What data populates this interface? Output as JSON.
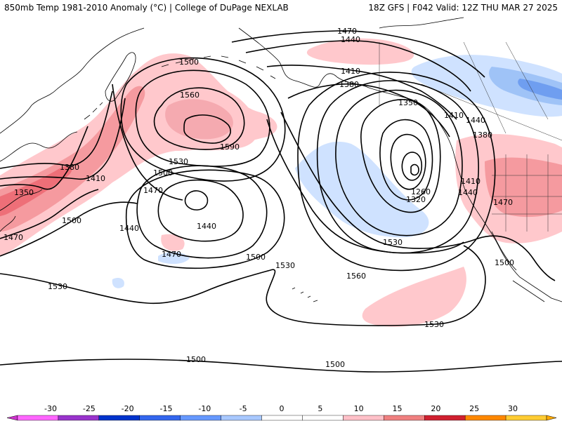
{
  "header": {
    "title": "850mb Temp 1981-2010 Anomaly (°C) | College of DuPage NEXLAB",
    "run_info": "18Z GFS | F042 Valid: 12Z THU MAR 27 2025"
  },
  "contour_labels": [
    "1470",
    "1440",
    "1410",
    "1380",
    "1350",
    "1260",
    "1320",
    "1500",
    "1560",
    "1590",
    "1530",
    "1410",
    "1380",
    "1350",
    "1500",
    "1470",
    "1440",
    "1440",
    "1470",
    "1500",
    "1530",
    "1560",
    "1530",
    "1410",
    "1440",
    "1470",
    "1500",
    "1500",
    "1500",
    "1530",
    "1470",
    "1410",
    "1440",
    "1380"
  ],
  "colorbar": {
    "ticks": [
      "-30",
      "-25",
      "-20",
      "-15",
      "-10",
      "-5",
      "0",
      "5",
      "10",
      "15",
      "20",
      "25",
      "30"
    ],
    "colors": [
      "#ff66ff",
      "#9933cc",
      "#0033cc",
      "#3366ee",
      "#6699ff",
      "#a8c8ff",
      "#ffffff",
      "#ffffff",
      "#ffc0c8",
      "#f08080",
      "#d02030",
      "#ff8800",
      "#ffcc33"
    ],
    "low_end_color": "#cc33cc",
    "high_end_color": "#ffaa00"
  },
  "anomaly_colors": {
    "warm_light": "#ffc8cc",
    "warm_mid": "#f59a9f",
    "warm_strong": "#ee6f78",
    "cool_light": "#cfe2ff",
    "cool_mid": "#9fc3f7",
    "cool_strong": "#6f9ef0"
  }
}
